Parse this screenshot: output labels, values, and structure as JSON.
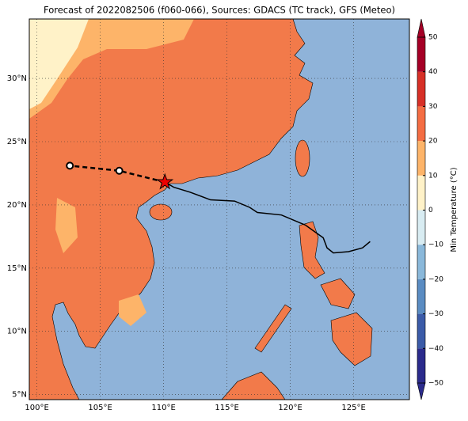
{
  "chart_data": {
    "type": "map",
    "title": "Forecast of 2022082506 (f060-066), Sources: GDACS (TC track), GFS (Meteo)",
    "xlim": [
      99.4,
      129.4
    ],
    "ylim": [
      4.6,
      34.7
    ],
    "xticks": [
      {
        "value": 100,
        "label": "100°E"
      },
      {
        "value": 105,
        "label": "105°E"
      },
      {
        "value": 110,
        "label": "110°E"
      },
      {
        "value": 115,
        "label": "115°E"
      },
      {
        "value": 120,
        "label": "120°E"
      },
      {
        "value": 125,
        "label": "125°E"
      }
    ],
    "yticks": [
      {
        "value": 5,
        "label": "5°N"
      },
      {
        "value": 10,
        "label": "10°N"
      },
      {
        "value": 15,
        "label": "15°N"
      },
      {
        "value": 20,
        "label": "20°N"
      },
      {
        "value": 25,
        "label": "25°N"
      },
      {
        "value": 30,
        "label": "30°N"
      }
    ],
    "grid": true,
    "track": {
      "lon": [
        126.3,
        125.7,
        124.6,
        123.4,
        122.9,
        122.6,
        121.2,
        119.3,
        117.4,
        116.8,
        115.6,
        113.7,
        112.1,
        110.8,
        110.1
      ],
      "lat": [
        17.1,
        16.6,
        16.3,
        16.2,
        16.6,
        17.4,
        18.4,
        19.2,
        19.4,
        19.8,
        20.3,
        20.4,
        21.0,
        21.4,
        21.8
      ]
    },
    "forecast": {
      "lon": [
        110.1,
        106.5,
        102.6
      ],
      "lat": [
        21.8,
        22.7,
        23.1
      ]
    },
    "colorbar": {
      "label": "Min Temperature (°C)",
      "levels": [
        -50,
        -40,
        -30,
        -20,
        -10,
        0,
        10,
        20,
        30,
        40,
        50
      ],
      "colors": [
        "#2b2b8c",
        "#3b5ba8",
        "#5a8cc2",
        "#8ab8da",
        "#d8ecf2",
        "#fff2c8",
        "#fdb469",
        "#f46d43",
        "#d73027",
        "#a50026"
      ],
      "ticks": [
        {
          "value": -50,
          "label": "−50"
        },
        {
          "value": -40,
          "label": "−40"
        },
        {
          "value": -30,
          "label": "−30"
        },
        {
          "value": -20,
          "label": "−20"
        },
        {
          "value": -10,
          "label": "−10"
        },
        0,
        10,
        20,
        30,
        40,
        50
      ]
    }
  }
}
